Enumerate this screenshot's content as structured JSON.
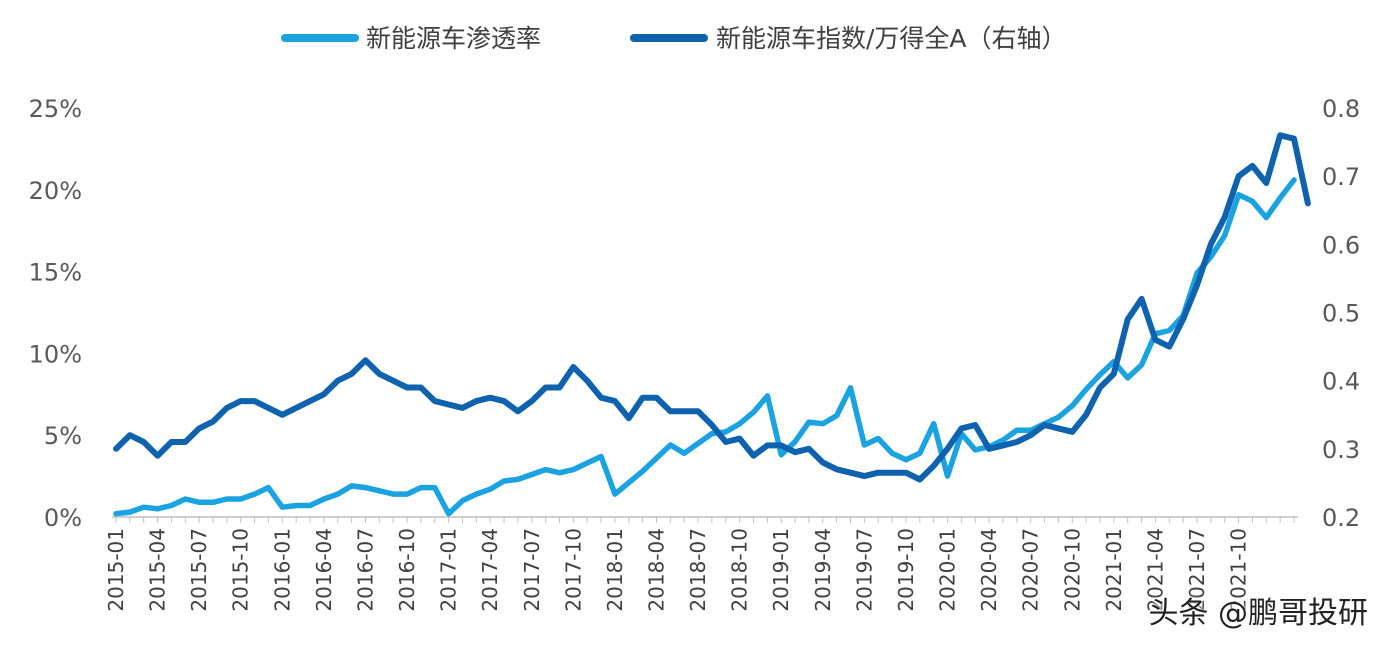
{
  "chart_data": {
    "type": "line",
    "legend": {
      "placement": "top-center"
    },
    "grid": false,
    "x_tick_labels": [
      "2015-01",
      "2015-04",
      "2015-07",
      "2015-10",
      "2016-01",
      "2016-04",
      "2016-07",
      "2016-10",
      "2017-01",
      "2017-04",
      "2017-07",
      "2017-10",
      "2018-01",
      "2018-04",
      "2018-07",
      "2018-10",
      "2019-01",
      "2019-04",
      "2019-07",
      "2019-10",
      "2020-01",
      "2020-04",
      "2020-07",
      "2020-10",
      "2021-01",
      "2021-04",
      "2021-07",
      "2021-10"
    ],
    "y_left": {
      "ticks": [
        "0%",
        "5%",
        "10%",
        "15%",
        "20%",
        "25%"
      ],
      "range": [
        0,
        25
      ],
      "unit": "%"
    },
    "y_right": {
      "ticks": [
        "0.2",
        "0.3",
        "0.4",
        "0.5",
        "0.6",
        "0.7",
        "0.8"
      ],
      "range": [
        0.2,
        0.8
      ]
    },
    "series": [
      {
        "name": "新能源车渗透率",
        "axis": "left",
        "color": "#1AA3E0",
        "values": [
          0.2,
          0.3,
          0.6,
          0.5,
          0.7,
          1.1,
          0.9,
          0.9,
          1.1,
          1.1,
          1.4,
          1.8,
          0.6,
          0.7,
          0.7,
          1.1,
          1.4,
          1.9,
          1.8,
          1.6,
          1.4,
          1.4,
          1.8,
          1.8,
          0.2,
          1.0,
          1.4,
          1.7,
          2.2,
          2.3,
          2.6,
          2.9,
          2.7,
          2.9,
          3.3,
          3.7,
          1.4,
          2.1,
          2.8,
          3.6,
          4.4,
          3.9,
          4.5,
          5.1,
          5.2,
          5.7,
          6.4,
          7.4,
          3.8,
          4.6,
          5.8,
          5.7,
          6.2,
          7.9,
          4.4,
          4.8,
          3.9,
          3.5,
          3.9,
          5.7,
          2.5,
          5.1,
          4.1,
          4.3,
          4.7,
          5.3,
          5.3,
          5.7,
          6.1,
          6.8,
          7.8,
          8.7,
          9.5,
          8.5,
          9.3,
          11.2,
          11.4,
          12.3,
          14.9,
          15.9,
          17.2,
          19.7,
          19.3,
          18.3,
          19.5,
          20.6
        ]
      },
      {
        "name": "新能源车指数/万得全A（右轴）",
        "axis": "right",
        "color": "#0F62AE",
        "values": [
          0.3,
          0.32,
          0.31,
          0.29,
          0.31,
          0.31,
          0.33,
          0.34,
          0.36,
          0.37,
          0.37,
          0.36,
          0.35,
          0.36,
          0.37,
          0.38,
          0.4,
          0.41,
          0.43,
          0.41,
          0.4,
          0.39,
          0.39,
          0.37,
          0.365,
          0.36,
          0.37,
          0.375,
          0.37,
          0.355,
          0.37,
          0.39,
          0.39,
          0.42,
          0.4,
          0.375,
          0.37,
          0.345,
          0.375,
          0.375,
          0.355,
          0.355,
          0.355,
          0.335,
          0.31,
          0.315,
          0.29,
          0.305,
          0.305,
          0.295,
          0.3,
          0.28,
          0.27,
          0.265,
          0.26,
          0.265,
          0.265,
          0.265,
          0.255,
          0.275,
          0.3,
          0.33,
          0.335,
          0.3,
          0.305,
          0.31,
          0.32,
          0.335,
          0.33,
          0.325,
          0.35,
          0.39,
          0.41,
          0.49,
          0.52,
          0.46,
          0.45,
          0.49,
          0.54,
          0.6,
          0.64,
          0.7,
          0.715,
          0.69,
          0.76,
          0.755,
          0.66
        ]
      }
    ]
  },
  "watermark": "头条 @鹏哥投研"
}
